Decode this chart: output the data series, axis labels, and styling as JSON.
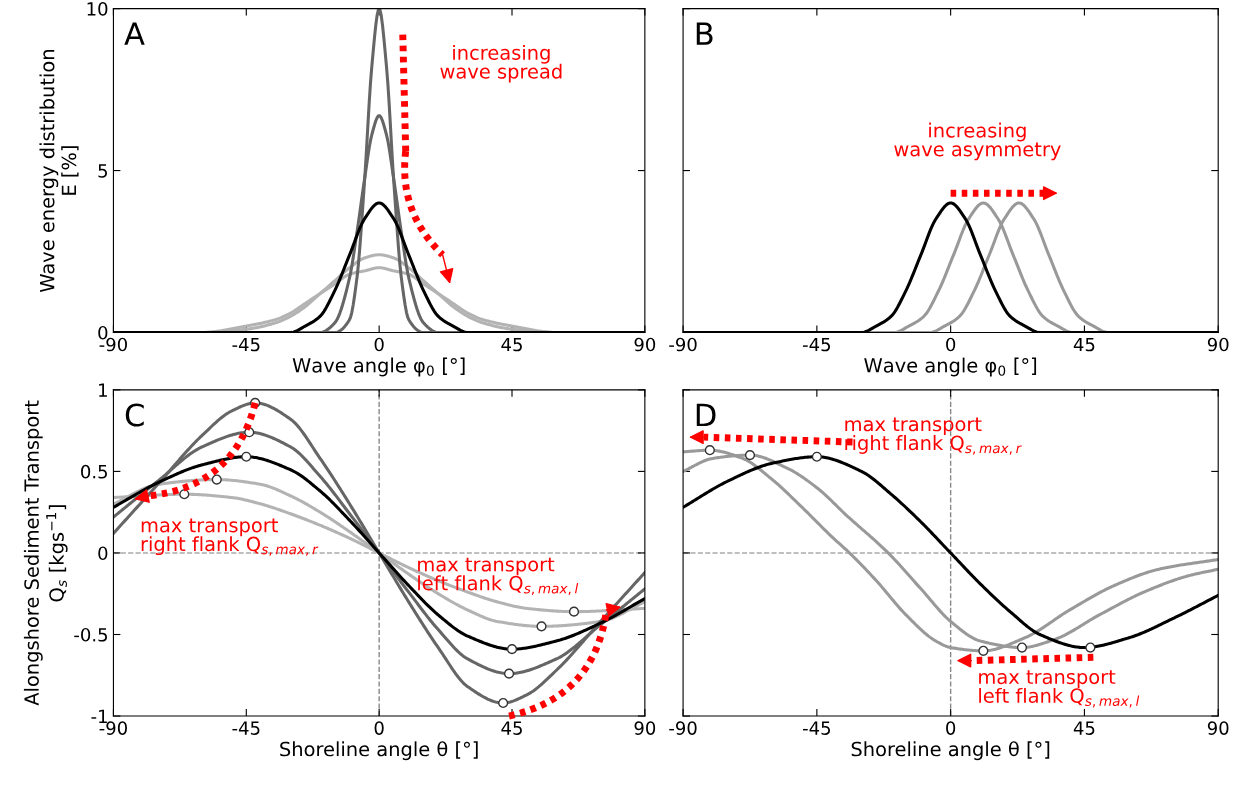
{
  "chart_data": [
    {
      "type": "line",
      "title": "A",
      "ylabel": "Wave energy distribution\nE [%]",
      "xlabel": "Wave angle φ$_{0}$ [°]",
      "xlim": [
        -90,
        90
      ],
      "xticks": [
        -90,
        -45,
        0,
        45,
        90
      ],
      "ylim": [
        0,
        10
      ],
      "yticks": [
        0,
        5,
        10
      ],
      "grid": false,
      "legend": false,
      "marker": "none",
      "line_style": "solid",
      "annotations": [
        "increasing\nwave spread"
      ],
      "series": [
        {
          "color": "#b3b3b3",
          "x": [
            -90,
            -60,
            -45,
            -35,
            -30,
            -25,
            -20,
            -15,
            -10,
            -5,
            0,
            5,
            10,
            15,
            20,
            25,
            30,
            35,
            45,
            60,
            90
          ],
          "values": [
            0.0,
            0.0,
            0.2,
            0.4,
            0.6,
            0.9,
            1.2,
            1.5,
            1.8,
            1.9,
            2.0,
            1.9,
            1.8,
            1.5,
            1.2,
            0.9,
            0.6,
            0.4,
            0.2,
            0.0,
            0.0
          ]
        },
        {
          "color": "#b3b3b3",
          "x": [
            -75,
            -60,
            -45,
            -35,
            -30,
            -25,
            -20,
            -15,
            -10,
            -5,
            0,
            5,
            10,
            15,
            20,
            25,
            30,
            35,
            45,
            60,
            75
          ],
          "values": [
            0.0,
            0.0,
            0.1,
            0.3,
            0.5,
            0.8,
            1.2,
            1.6,
            2.0,
            2.3,
            2.4,
            2.3,
            2.0,
            1.6,
            1.2,
            0.8,
            0.5,
            0.3,
            0.1,
            0.0,
            0.0
          ]
        },
        {
          "color": "#666666",
          "x": [
            -90,
            -20,
            -15,
            -10,
            -7.5,
            -5,
            -2.5,
            0,
            2.5,
            5,
            7.5,
            10,
            15,
            20,
            90
          ],
          "values": [
            0.0,
            0.0,
            0.3,
            1.7,
            3.1,
            4.7,
            6.1,
            6.7,
            6.1,
            4.7,
            3.1,
            1.7,
            0.3,
            0.0,
            0.0
          ]
        },
        {
          "color": "#666666",
          "x": [
            -90,
            -15,
            -10,
            -7.5,
            -5,
            -2.5,
            0,
            2.5,
            5,
            7.5,
            10,
            15,
            90
          ],
          "values": [
            0.0,
            0.0,
            0.4,
            1.7,
            4.6,
            8.2,
            10.0,
            8.2,
            4.6,
            1.7,
            0.4,
            0.0,
            0.0
          ]
        },
        {
          "color": "#000000",
          "x": [
            -90,
            -35,
            -30,
            -25,
            -20,
            -15,
            -10,
            -5,
            0,
            5,
            10,
            15,
            20,
            25,
            30,
            35,
            90
          ],
          "values": [
            0.0,
            0.0,
            0.0,
            0.2,
            0.5,
            1.3,
            2.4,
            3.5,
            4.0,
            3.5,
            2.4,
            1.3,
            0.5,
            0.2,
            0.0,
            0.0,
            0.0
          ]
        }
      ]
    },
    {
      "type": "line",
      "title": "B",
      "xlabel": "Wave angle φ$_{0}$ [°]",
      "xlim": [
        -90,
        90
      ],
      "xticks": [
        -90,
        -45,
        0,
        45,
        90
      ],
      "ylim": [
        0,
        10
      ],
      "yticks": [
        0,
        5,
        10
      ],
      "tick_labels": "x",
      "grid": false,
      "legend": false,
      "marker": "none",
      "line_style": "solid",
      "annotations": [
        "increasing\nwave asymmetry"
      ],
      "series": [
        {
          "color": "#999999",
          "x": [
            -90,
            -24,
            -19,
            -14,
            -9,
            -4,
            1,
            6,
            11,
            16,
            21,
            26,
            31,
            36,
            41,
            46,
            70
          ],
          "values": [
            0.0,
            0.0,
            0.0,
            0.2,
            0.5,
            1.3,
            2.4,
            3.5,
            4.0,
            3.5,
            2.4,
            1.3,
            0.5,
            0.2,
            0.0,
            0.0,
            0.0
          ]
        },
        {
          "color": "#999999",
          "x": [
            -60,
            -12,
            -7,
            -2,
            3,
            8,
            13,
            18,
            23,
            28,
            33,
            38,
            43,
            48,
            53,
            58,
            90
          ],
          "values": [
            0.0,
            0.0,
            0.0,
            0.2,
            0.5,
            1.3,
            2.4,
            3.5,
            4.0,
            3.5,
            2.4,
            1.3,
            0.5,
            0.2,
            0.0,
            0.0,
            0.0
          ]
        },
        {
          "color": "#000000",
          "x": [
            -90,
            -35,
            -30,
            -25,
            -20,
            -15,
            -10,
            -5,
            0,
            5,
            10,
            15,
            20,
            25,
            30,
            35,
            90
          ],
          "values": [
            0.0,
            0.0,
            0.0,
            0.2,
            0.5,
            1.3,
            2.4,
            3.5,
            4.0,
            3.5,
            2.4,
            1.3,
            0.5,
            0.2,
            0.0,
            0.0,
            0.0
          ]
        }
      ]
    },
    {
      "type": "line",
      "title": "C",
      "ylabel": "Alongshore Sediment Transport\nQ$_{s}$ [kgs$^{−1}$]",
      "xlabel": "Shoreline angle θ [°]",
      "xlim": [
        -90,
        90
      ],
      "xticks": [
        -90,
        -45,
        0,
        45,
        90
      ],
      "ylim": [
        -1,
        1
      ],
      "yticks": [
        -1,
        -0.5,
        0,
        0.5,
        1
      ],
      "grid": false,
      "legend": false,
      "marker": "none",
      "line_style": "solid",
      "ref_lines": [
        {
          "axis": "x",
          "value": 0,
          "color": "#888888",
          "line_style": "dashed"
        },
        {
          "axis": "y",
          "value": 0,
          "color": "#aaaaaa",
          "line_style": "dashed"
        }
      ],
      "annotations": [
        "max transport\nright flank Q$_{s,max,r}$",
        "max transport\nleft flank Q$_{s,max,l}$"
      ],
      "series": [
        {
          "color": "#b3b3b3",
          "x": [
            -90,
            -66,
            -50,
            -40,
            -30,
            -20,
            -10,
            0,
            10,
            20,
            30,
            40,
            50,
            66,
            90
          ],
          "values": [
            0.34,
            0.36,
            0.34,
            0.3,
            0.24,
            0.17,
            0.09,
            0,
            -0.09,
            -0.17,
            -0.24,
            -0.3,
            -0.34,
            -0.36,
            -0.34
          ]
        },
        {
          "color": "#b3b3b3",
          "x": [
            -90,
            -75,
            -55,
            -40,
            -30,
            -20,
            -10,
            0,
            10,
            20,
            30,
            40,
            55,
            75,
            90
          ],
          "values": [
            0.3,
            0.42,
            0.45,
            0.42,
            0.35,
            0.25,
            0.13,
            0,
            -0.13,
            -0.25,
            -0.35,
            -0.42,
            -0.45,
            -0.42,
            -0.3
          ]
        },
        {
          "color": "#666666",
          "x": [
            -90,
            -75,
            -60,
            -44,
            -30,
            -20,
            -10,
            0,
            10,
            20,
            30,
            44,
            60,
            75,
            90
          ],
          "values": [
            0.22,
            0.44,
            0.65,
            0.74,
            0.65,
            0.47,
            0.24,
            0,
            -0.24,
            -0.47,
            -0.65,
            -0.74,
            -0.65,
            -0.44,
            -0.22
          ]
        },
        {
          "color": "#666666",
          "x": [
            -90,
            -75,
            -60,
            -50,
            -42,
            -30,
            -20,
            -10,
            0,
            10,
            20,
            30,
            42,
            50,
            60,
            75,
            90
          ],
          "values": [
            0.12,
            0.42,
            0.72,
            0.87,
            0.92,
            0.82,
            0.58,
            0.3,
            0,
            -0.3,
            -0.58,
            -0.82,
            -0.92,
            -0.87,
            -0.72,
            -0.42,
            -0.12
          ]
        },
        {
          "color": "#000000",
          "x": [
            -90,
            -75,
            -60,
            -45,
            -30,
            -20,
            -10,
            0,
            10,
            20,
            30,
            45,
            60,
            75,
            90
          ],
          "values": [
            0.28,
            0.43,
            0.54,
            0.59,
            0.51,
            0.38,
            0.2,
            0,
            -0.2,
            -0.38,
            -0.51,
            -0.59,
            -0.54,
            -0.43,
            -0.28
          ]
        },
        {
          "type": "scatter",
          "color": "#ffffff",
          "marker": "circle",
          "x": [
            -42,
            -44,
            -45,
            -55,
            -66,
            42,
            44,
            45,
            55,
            66
          ],
          "values": [
            0.92,
            0.74,
            0.59,
            0.45,
            0.36,
            -0.92,
            -0.74,
            -0.59,
            -0.45,
            -0.36
          ]
        }
      ]
    },
    {
      "type": "line",
      "title": "D",
      "xlabel": "Shoreline angle θ [°]",
      "xlim": [
        -90,
        90
      ],
      "xticks": [
        -90,
        -45,
        0,
        45,
        90
      ],
      "ylim": [
        -1,
        1
      ],
      "yticks": [
        -1,
        -0.5,
        0,
        0.5,
        1
      ],
      "tick_labels": "x",
      "grid": false,
      "legend": false,
      "marker": "none",
      "line_style": "solid",
      "ref_lines": [
        {
          "axis": "x",
          "value": 0,
          "color": "#888888",
          "line_style": "dashed"
        },
        {
          "axis": "y",
          "value": 0,
          "color": "#aaaaaa",
          "line_style": "dashed"
        }
      ],
      "annotations": [
        "max transport\nright flank Q$_{s,max,r}$",
        "max transport\nleft flank Q$_{s,max,l}$"
      ],
      "series": [
        {
          "color": "#999999",
          "x": [
            -90,
            -81,
            -70,
            -60,
            -50,
            -40,
            -34,
            -25,
            -15,
            -5,
            0,
            11,
            25,
            40,
            55,
            70,
            90
          ],
          "values": [
            0.62,
            0.63,
            0.58,
            0.45,
            0.28,
            0.1,
            0,
            -0.17,
            -0.38,
            -0.54,
            -0.58,
            -0.6,
            -0.52,
            -0.35,
            -0.2,
            -0.1,
            -0.04
          ]
        },
        {
          "color": "#999999",
          "x": [
            -90,
            -80,
            -67.5,
            -55,
            -45,
            -35,
            -21,
            -10,
            0,
            10,
            24,
            35,
            50,
            65,
            80,
            90
          ],
          "values": [
            0.5,
            0.58,
            0.6,
            0.52,
            0.4,
            0.23,
            0,
            -0.22,
            -0.42,
            -0.54,
            -0.58,
            -0.53,
            -0.38,
            -0.24,
            -0.14,
            -0.1
          ]
        },
        {
          "color": "#000000",
          "x": [
            -90,
            -75,
            -60,
            -45,
            -30,
            -20,
            -10,
            0,
            10,
            20,
            30,
            45,
            60,
            75,
            90
          ],
          "values": [
            0.28,
            0.44,
            0.55,
            0.59,
            0.5,
            0.36,
            0.19,
            0,
            -0.19,
            -0.36,
            -0.5,
            -0.58,
            -0.52,
            -0.4,
            -0.26
          ]
        },
        {
          "type": "scatter",
          "color": "#ffffff",
          "marker": "circle",
          "x": [
            -81,
            -67.5,
            -45,
            11,
            24,
            47
          ],
          "values": [
            0.63,
            0.6,
            0.59,
            -0.6,
            -0.58,
            -0.58
          ]
        }
      ]
    }
  ]
}
